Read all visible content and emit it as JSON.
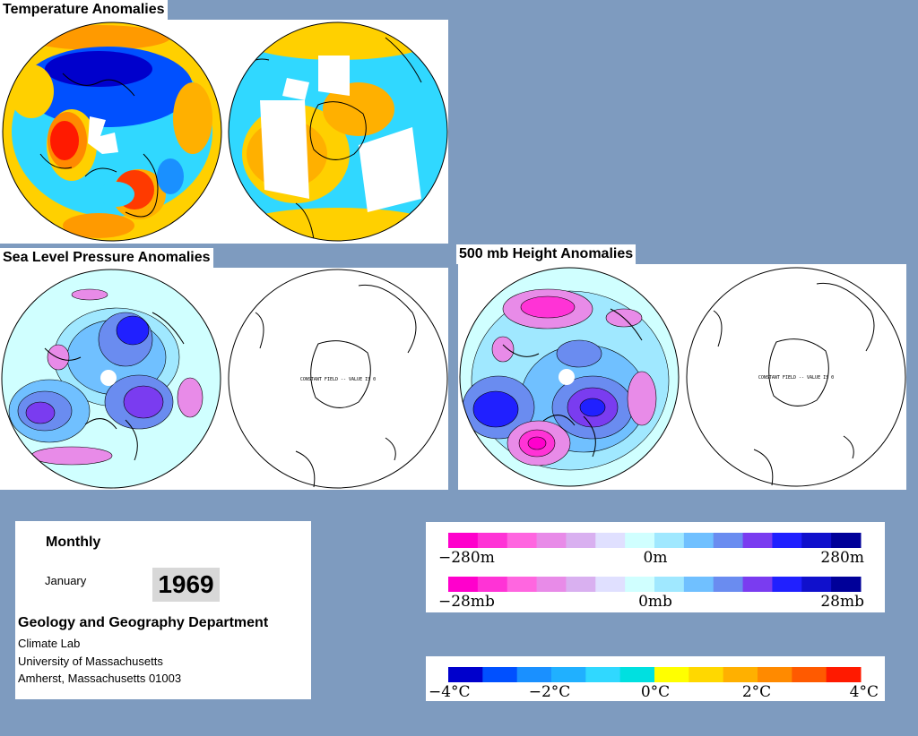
{
  "titles": {
    "temperature": "Temperature Anomalies",
    "slp": "Sea Level Pressure Anomalies",
    "height": "500 mb Height Anomalies"
  },
  "constant_field_note": "CONSTANT FIELD -- VALUE IS 0",
  "info": {
    "period": "Monthly",
    "month": "January",
    "year": "1969",
    "department": "Geology and Geography Department",
    "lab": "Climate Lab",
    "university": "University of Massachusetts",
    "address": "Amherst, Massachusetts 01003"
  },
  "height_scale": {
    "labels": [
      "−280m",
      "0m",
      "280m"
    ],
    "colors": [
      "#ff00cc",
      "#ff33d6",
      "#ff66e0",
      "#e88be8",
      "#d9b0f0",
      "#e0e0ff",
      "#d0ffff",
      "#a0e8ff",
      "#70c0ff",
      "#6a8cf0",
      "#7a3cf0",
      "#2020ff",
      "#1010cc",
      "#000099"
    ]
  },
  "slp_scale": {
    "labels": [
      "−28mb",
      "0mb",
      "28mb"
    ],
    "colors": [
      "#ff00cc",
      "#ff33d6",
      "#ff66e0",
      "#e88be8",
      "#d9b0f0",
      "#e0e0ff",
      "#d0ffff",
      "#a0e8ff",
      "#70c0ff",
      "#6a8cf0",
      "#7a3cf0",
      "#2020ff",
      "#1010cc",
      "#000099"
    ]
  },
  "temp_scale": {
    "labels": [
      "−4°C",
      "−2°C",
      "0°C",
      "2°C",
      "4°C"
    ],
    "colors": [
      "#0000cc",
      "#0050ff",
      "#1a90ff",
      "#20b0ff",
      "#30d8ff",
      "#00e0e0",
      "#ffff00",
      "#ffd800",
      "#ffb000",
      "#ff8a00",
      "#ff5a00",
      "#ff1a00"
    ]
  },
  "colors": {
    "background": "#7e9bbf",
    "year_box": "#d8d8d8"
  }
}
